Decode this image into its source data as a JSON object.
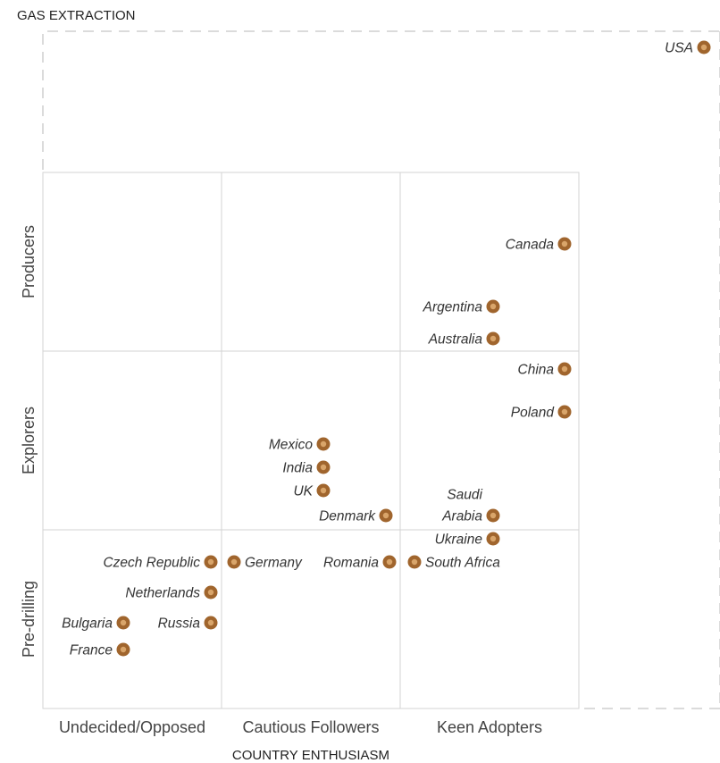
{
  "chart_data": {
    "type": "scatter",
    "title": "",
    "ylabel": "GAS EXTRACTION",
    "xlabel": "COUNTRY ENTHUSIASM",
    "x_categories": [
      "Undecided/Opposed",
      "Cautious Followers",
      "Keen Adopters"
    ],
    "y_categories": [
      "Pre-drilling",
      "Explorers",
      "Producers"
    ],
    "grid": true,
    "colors": {
      "marker_fill": "#a0652d",
      "marker_center": "#d9a56a",
      "grid": "#d3d3d3",
      "dashed_frame": "#cfcfcf"
    },
    "points": [
      {
        "label": "USA",
        "x": 3.7,
        "y": 3.7,
        "label_side": "left"
      },
      {
        "label": "Canada",
        "x": 2.92,
        "y": 2.6,
        "label_side": "left"
      },
      {
        "label": "Argentina",
        "x": 2.52,
        "y": 2.25,
        "label_side": "left"
      },
      {
        "label": "Australia",
        "x": 2.52,
        "y": 2.07,
        "label_side": "left"
      },
      {
        "label": "China",
        "x": 2.92,
        "y": 1.9,
        "label_side": "left"
      },
      {
        "label": "Poland",
        "x": 2.92,
        "y": 1.66,
        "label_side": "left"
      },
      {
        "label": "Mexico",
        "x": 1.57,
        "y": 1.48,
        "label_side": "left"
      },
      {
        "label": "India",
        "x": 1.57,
        "y": 1.35,
        "label_side": "left"
      },
      {
        "label": "UK",
        "x": 1.57,
        "y": 1.22,
        "label_side": "left"
      },
      {
        "label": "Denmark",
        "x": 1.92,
        "y": 1.08,
        "label_side": "left"
      },
      {
        "label": "Saudi Arabia",
        "x": 2.52,
        "y": 1.08,
        "label_side": "left",
        "label_lines": [
          "Saudi",
          "Arabia"
        ]
      },
      {
        "label": "Ukraine",
        "x": 2.52,
        "y": 0.95,
        "label_side": "left"
      },
      {
        "label": "Czech Republic",
        "x": 0.94,
        "y": 0.82,
        "label_side": "left"
      },
      {
        "label": "Germany",
        "x": 1.07,
        "y": 0.82,
        "label_side": "right"
      },
      {
        "label": "Romania",
        "x": 1.94,
        "y": 0.82,
        "label_side": "left"
      },
      {
        "label": "South Africa",
        "x": 2.08,
        "y": 0.82,
        "label_side": "right"
      },
      {
        "label": "Netherlands",
        "x": 0.94,
        "y": 0.65,
        "label_side": "left"
      },
      {
        "label": "Bulgaria",
        "x": 0.45,
        "y": 0.48,
        "label_side": "left"
      },
      {
        "label": "Russia",
        "x": 0.94,
        "y": 0.48,
        "label_side": "left"
      },
      {
        "label": "France",
        "x": 0.45,
        "y": 0.33,
        "label_side": "left"
      }
    ]
  }
}
